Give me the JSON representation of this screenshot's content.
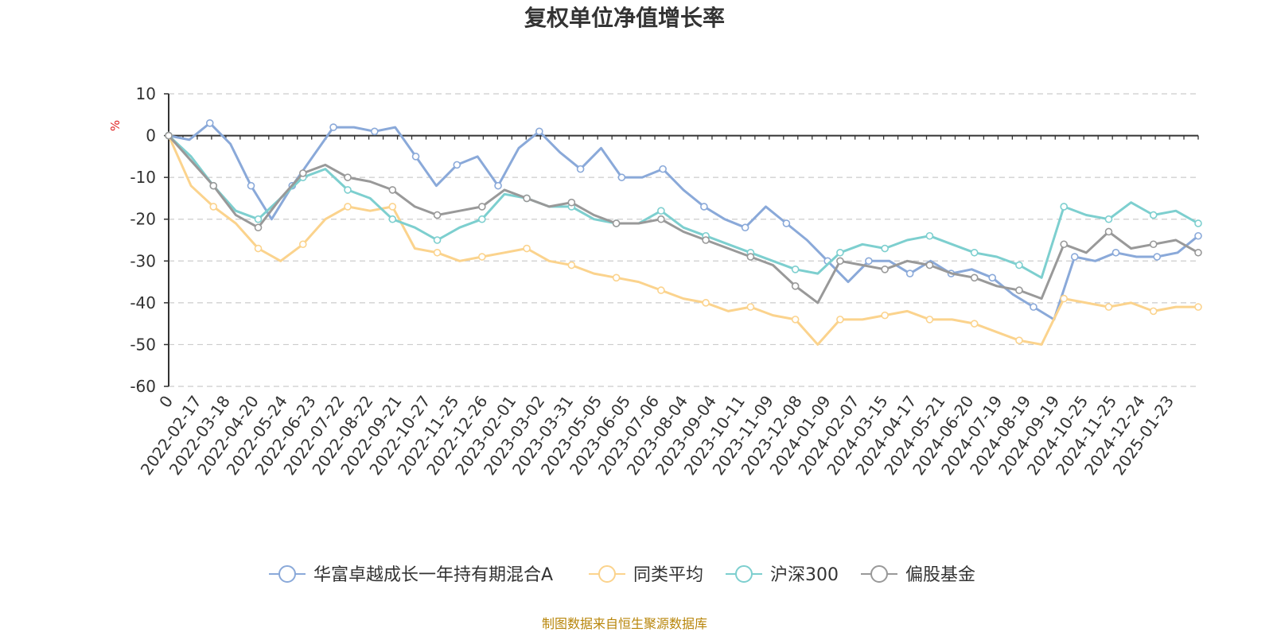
{
  "chart_data": {
    "type": "line",
    "title": "复权单位净值增长率",
    "ylabel": "%",
    "ylim": [
      -60,
      10
    ],
    "y_ticks": [
      10,
      0,
      -10,
      -20,
      -30,
      -40,
      -50,
      -60
    ],
    "grid": true,
    "legend_position": "bottom",
    "x_origin_label": "0",
    "x_tick_labels": [
      "2022-02-17",
      "2022-03-18",
      "2022-04-20",
      "2022-05-24",
      "2022-06-23",
      "2022-07-22",
      "2022-08-22",
      "2022-09-21",
      "2022-10-27",
      "2022-11-25",
      "2022-12-26",
      "2023-02-01",
      "2023-03-02",
      "2023-03-31",
      "2023-05-05",
      "2023-06-05",
      "2023-07-06",
      "2023-08-04",
      "2023-09-04",
      "2023-10-11",
      "2023-11-09",
      "2023-12-08",
      "2024-01-09",
      "2024-02-07",
      "2024-03-15",
      "2024-04-17",
      "2024-05-21",
      "2024-06-20",
      "2024-07-19",
      "2024-08-19",
      "2024-09-19",
      "2024-10-25",
      "2024-11-25",
      "2024-12-24",
      "2025-01-23"
    ],
    "source": "制图数据来自恒生聚源数据库",
    "series": [
      {
        "name": "华富卓越成长一年持有期混合A",
        "color": "#8aa9d9",
        "values": [
          0,
          -1,
          3,
          -2,
          -12,
          -20,
          -12,
          -5,
          2,
          2,
          1,
          2,
          -5,
          -12,
          -7,
          -5,
          -12,
          -3,
          1,
          -4,
          -8,
          -3,
          -10,
          -10,
          -8,
          -13,
          -17,
          -20,
          -22,
          -17,
          -21,
          -25,
          -30,
          -35,
          -30,
          -30,
          -33,
          -30,
          -33,
          -32,
          -34,
          -38,
          -41,
          -44,
          -29,
          -30,
          -28,
          -29,
          -29,
          -28,
          -24
        ]
      },
      {
        "name": "同类平均",
        "color": "#fbd38d",
        "values": [
          0,
          -12,
          -17,
          -21,
          -27,
          -30,
          -26,
          -20,
          -17,
          -18,
          -17,
          -27,
          -28,
          -30,
          -29,
          -28,
          -27,
          -30,
          -31,
          -33,
          -34,
          -35,
          -37,
          -39,
          -40,
          -42,
          -41,
          -43,
          -44,
          -50,
          -44,
          -44,
          -43,
          -42,
          -44,
          -44,
          -45,
          -47,
          -49,
          -50,
          -39,
          -40,
          -41,
          -40,
          -42,
          -41,
          -41
        ]
      },
      {
        "name": "沪深300",
        "color": "#7dcfcf",
        "values": [
          0,
          -5,
          -12,
          -18,
          -20,
          -15,
          -10,
          -8,
          -13,
          -15,
          -20,
          -22,
          -25,
          -22,
          -20,
          -14,
          -15,
          -17,
          -17,
          -20,
          -21,
          -21,
          -18,
          -22,
          -24,
          -26,
          -28,
          -30,
          -32,
          -33,
          -28,
          -26,
          -27,
          -25,
          -24,
          -26,
          -28,
          -29,
          -31,
          -34,
          -17,
          -19,
          -20,
          -16,
          -19,
          -18,
          -21
        ]
      },
      {
        "name": "偏股基金",
        "color": "#999999",
        "values": [
          0,
          -6,
          -12,
          -19,
          -22,
          -15,
          -9,
          -7,
          -10,
          -11,
          -13,
          -17,
          -19,
          -18,
          -17,
          -13,
          -15,
          -17,
          -16,
          -19,
          -21,
          -21,
          -20,
          -23,
          -25,
          -27,
          -29,
          -31,
          -36,
          -40,
          -30,
          -31,
          -32,
          -30,
          -31,
          -33,
          -34,
          -36,
          -37,
          -39,
          -26,
          -28,
          -23,
          -27,
          -26,
          -25,
          -28
        ]
      }
    ]
  }
}
